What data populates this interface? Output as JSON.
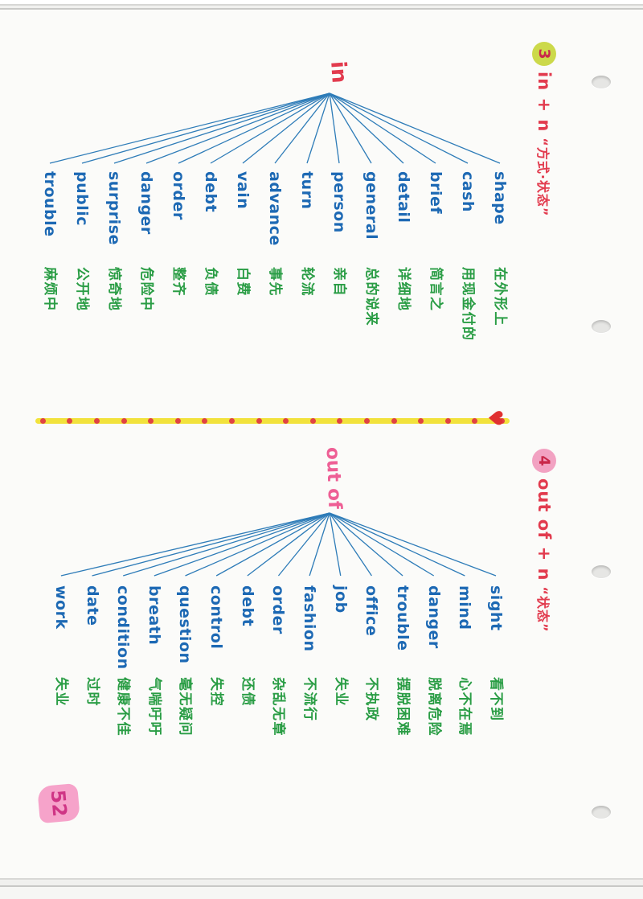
{
  "sections": {
    "in": {
      "number": "3",
      "title": "in + n",
      "subtitle": "“方式·状态”",
      "hub": "in",
      "items": [
        {
          "word": "shape",
          "meaning": "在外形上"
        },
        {
          "word": "cash",
          "meaning": "用现金付的"
        },
        {
          "word": "brief",
          "meaning": "简言之"
        },
        {
          "word": "detail",
          "meaning": "详细地"
        },
        {
          "word": "general",
          "meaning": "总的说来"
        },
        {
          "word": "person",
          "meaning": "亲自"
        },
        {
          "word": "turn",
          "meaning": "轮流"
        },
        {
          "word": "advance",
          "meaning": "事先"
        },
        {
          "word": "vain",
          "meaning": "白费"
        },
        {
          "word": "debt",
          "meaning": "负债"
        },
        {
          "word": "order",
          "meaning": "整齐"
        },
        {
          "word": "danger",
          "meaning": "危险中"
        },
        {
          "word": "surprise",
          "meaning": "惊奇地"
        },
        {
          "word": "public",
          "meaning": "公开地"
        },
        {
          "word": "trouble",
          "meaning": "麻烦中"
        }
      ]
    },
    "out": {
      "number": "4",
      "title": "out of + n",
      "subtitle": "“状态”",
      "hub": "out of",
      "items": [
        {
          "word": "sight",
          "meaning": "看不到"
        },
        {
          "word": "mind",
          "meaning": "心不在焉"
        },
        {
          "word": "danger",
          "meaning": "脱离危险"
        },
        {
          "word": "trouble",
          "meaning": "摆脱困难"
        },
        {
          "word": "office",
          "meaning": "不执政"
        },
        {
          "word": "job",
          "meaning": "失业"
        },
        {
          "word": "fashion",
          "meaning": "不流行"
        },
        {
          "word": "order",
          "meaning": "杂乱无章"
        },
        {
          "word": "debt",
          "meaning": "还债"
        },
        {
          "word": "control",
          "meaning": "失控"
        },
        {
          "word": "question",
          "meaning": "毫无疑问"
        },
        {
          "word": "breath",
          "meaning": "气喘吁吁"
        },
        {
          "word": "condition",
          "meaning": "健康不佳"
        },
        {
          "word": "date",
          "meaning": "过时"
        },
        {
          "word": "work",
          "meaning": "失业"
        }
      ]
    }
  },
  "divider": {
    "heart_icon": "♥"
  },
  "page_number": "52",
  "colors": {
    "word_blue": "#1d69b4",
    "meaning_green": "#2a9d45",
    "header_red": "#e23b4e",
    "hub_out_pink": "#ee5f95",
    "badge3_highlight": "#ccd94a",
    "badge4_highlight": "#f2a2c2",
    "divider_yellow": "#f2e23c",
    "dot_red": "#e04343",
    "heart_red": "#e03131",
    "page_number_pink": "#f6a3ca"
  }
}
